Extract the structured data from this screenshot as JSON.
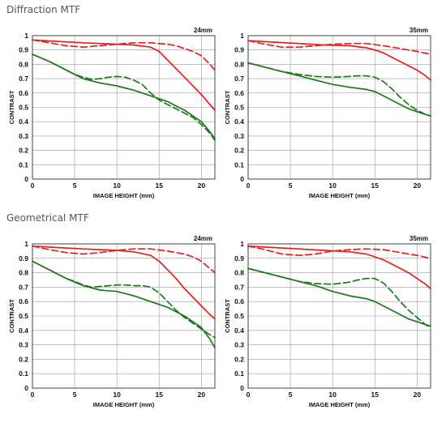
{
  "sections": [
    {
      "title": "Diffraction MTF"
    },
    {
      "title": "Geometrical MTF"
    }
  ],
  "colors": {
    "red": "#e41f1f",
    "green": "#1a7a1a",
    "grid": "#9a9a9a",
    "frame": "#333333"
  },
  "chart_data": [
    {
      "type": "line",
      "section": "Diffraction MTF",
      "focal": "24mm",
      "xlabel": "IMAGE HEIGHT (mm)",
      "ylabel": "CONTRAST",
      "xlim": [
        0,
        21.6
      ],
      "ylim": [
        0,
        1
      ],
      "xticks": [
        0,
        5,
        10,
        15,
        20
      ],
      "yticks": [
        0,
        0.1,
        0.2,
        0.3,
        0.4,
        0.5,
        0.6,
        0.7,
        0.8,
        0.9,
        1
      ],
      "series": [
        {
          "color": "red",
          "dash": false,
          "x": [
            0,
            3,
            6,
            8,
            10,
            12,
            14,
            15,
            16,
            17,
            18,
            19,
            20,
            21,
            21.6
          ],
          "y": [
            0.97,
            0.96,
            0.95,
            0.945,
            0.94,
            0.935,
            0.92,
            0.89,
            0.83,
            0.77,
            0.71,
            0.65,
            0.59,
            0.52,
            0.48
          ]
        },
        {
          "color": "red",
          "dash": true,
          "x": [
            0,
            2,
            4,
            6,
            8,
            10,
            12,
            14,
            16,
            17,
            18,
            19,
            20,
            21,
            21.6
          ],
          "y": [
            0.97,
            0.95,
            0.93,
            0.92,
            0.93,
            0.94,
            0.95,
            0.95,
            0.94,
            0.93,
            0.91,
            0.89,
            0.86,
            0.8,
            0.76
          ]
        },
        {
          "color": "green",
          "dash": false,
          "x": [
            0,
            2,
            4,
            6,
            8,
            10,
            12,
            14,
            16,
            17,
            18,
            19,
            20,
            21,
            21.6
          ],
          "y": [
            0.87,
            0.82,
            0.76,
            0.7,
            0.67,
            0.65,
            0.62,
            0.58,
            0.54,
            0.51,
            0.48,
            0.44,
            0.4,
            0.33,
            0.28
          ]
        },
        {
          "color": "green",
          "dash": true,
          "x": [
            0,
            2,
            4,
            5,
            6,
            7,
            8,
            9,
            10,
            11,
            12,
            13,
            14,
            15,
            16,
            17,
            18,
            19,
            20,
            21,
            21.6
          ],
          "y": [
            0.87,
            0.82,
            0.76,
            0.73,
            0.71,
            0.695,
            0.7,
            0.71,
            0.715,
            0.71,
            0.69,
            0.66,
            0.6,
            0.55,
            0.52,
            0.49,
            0.46,
            0.43,
            0.38,
            0.32,
            0.27
          ]
        }
      ]
    },
    {
      "type": "line",
      "section": "Diffraction MTF",
      "focal": "35mm",
      "xlabel": "IMAGE HEIGHT (mm)",
      "ylabel": "CONTRAST",
      "xlim": [
        0,
        21.6
      ],
      "ylim": [
        0,
        1
      ],
      "xticks": [
        0,
        5,
        10,
        15,
        20
      ],
      "yticks": [
        0,
        0.1,
        0.2,
        0.3,
        0.4,
        0.5,
        0.6,
        0.7,
        0.8,
        0.9,
        1
      ],
      "series": [
        {
          "color": "red",
          "dash": false,
          "x": [
            0,
            3,
            6,
            9,
            12,
            14,
            15,
            16,
            17,
            18,
            19,
            20,
            21,
            21.6
          ],
          "y": [
            0.965,
            0.955,
            0.945,
            0.935,
            0.93,
            0.915,
            0.9,
            0.88,
            0.85,
            0.82,
            0.79,
            0.76,
            0.72,
            0.69
          ]
        },
        {
          "color": "red",
          "dash": true,
          "x": [
            0,
            2,
            4,
            6,
            8,
            10,
            12,
            14,
            16,
            18,
            20,
            21.6
          ],
          "y": [
            0.965,
            0.94,
            0.92,
            0.92,
            0.93,
            0.94,
            0.945,
            0.945,
            0.93,
            0.91,
            0.89,
            0.87
          ]
        },
        {
          "color": "green",
          "dash": false,
          "x": [
            0,
            2,
            4,
            6,
            8,
            10,
            12,
            14,
            15,
            16,
            17,
            18,
            19,
            20,
            21,
            21.6
          ],
          "y": [
            0.81,
            0.78,
            0.75,
            0.72,
            0.69,
            0.66,
            0.64,
            0.625,
            0.61,
            0.58,
            0.55,
            0.52,
            0.49,
            0.47,
            0.45,
            0.44
          ]
        },
        {
          "color": "green",
          "dash": true,
          "x": [
            0,
            2,
            4,
            6,
            8,
            10,
            12,
            13,
            14,
            15,
            16,
            17,
            18,
            19,
            20,
            21,
            21.6
          ],
          "y": [
            0.81,
            0.78,
            0.75,
            0.73,
            0.715,
            0.71,
            0.715,
            0.72,
            0.72,
            0.71,
            0.68,
            0.63,
            0.57,
            0.52,
            0.48,
            0.45,
            0.44
          ]
        }
      ]
    },
    {
      "type": "line",
      "section": "Geometrical MTF",
      "focal": "24mm",
      "xlabel": "IMAGE HEIGHT (mm)",
      "ylabel": "CONTRAST",
      "xlim": [
        0,
        21.6
      ],
      "ylim": [
        0,
        1
      ],
      "xticks": [
        0,
        5,
        10,
        15,
        20
      ],
      "yticks": [
        0,
        0.1,
        0.2,
        0.3,
        0.4,
        0.5,
        0.6,
        0.7,
        0.8,
        0.9,
        1
      ],
      "series": [
        {
          "color": "red",
          "dash": false,
          "x": [
            0,
            3,
            6,
            8,
            10,
            12,
            14,
            15,
            16,
            17,
            18,
            19,
            20,
            21,
            21.6
          ],
          "y": [
            0.985,
            0.975,
            0.965,
            0.96,
            0.955,
            0.945,
            0.92,
            0.88,
            0.82,
            0.76,
            0.69,
            0.63,
            0.57,
            0.51,
            0.48
          ]
        },
        {
          "color": "red",
          "dash": true,
          "x": [
            0,
            2,
            4,
            6,
            8,
            10,
            12,
            14,
            16,
            17,
            18,
            19,
            20,
            21,
            21.6
          ],
          "y": [
            0.985,
            0.96,
            0.94,
            0.93,
            0.94,
            0.955,
            0.965,
            0.965,
            0.95,
            0.94,
            0.93,
            0.91,
            0.88,
            0.83,
            0.8
          ]
        },
        {
          "color": "green",
          "dash": false,
          "x": [
            0,
            2,
            4,
            6,
            8,
            10,
            12,
            14,
            16,
            17,
            18,
            19,
            20,
            21,
            21.6
          ],
          "y": [
            0.88,
            0.82,
            0.76,
            0.71,
            0.68,
            0.67,
            0.64,
            0.6,
            0.56,
            0.53,
            0.5,
            0.46,
            0.42,
            0.34,
            0.28
          ]
        },
        {
          "color": "green",
          "dash": true,
          "x": [
            0,
            2,
            4,
            5,
            6,
            7,
            8,
            9,
            10,
            11,
            12,
            13,
            14,
            15,
            16,
            17,
            18,
            19,
            20,
            21,
            21.6
          ],
          "y": [
            0.88,
            0.82,
            0.76,
            0.74,
            0.715,
            0.7,
            0.705,
            0.71,
            0.715,
            0.715,
            0.71,
            0.71,
            0.7,
            0.66,
            0.6,
            0.54,
            0.49,
            0.45,
            0.41,
            0.37,
            0.35
          ]
        }
      ]
    },
    {
      "type": "line",
      "section": "Geometrical MTF",
      "focal": "35mm",
      "xlabel": "IMAGE HEIGHT (mm)",
      "ylabel": "CONTRAST",
      "xlim": [
        0,
        21.6
      ],
      "ylim": [
        0,
        1
      ],
      "xticks": [
        0,
        5,
        10,
        15,
        20
      ],
      "yticks": [
        0,
        0.1,
        0.2,
        0.3,
        0.4,
        0.5,
        0.6,
        0.7,
        0.8,
        0.9,
        1
      ],
      "series": [
        {
          "color": "red",
          "dash": false,
          "x": [
            0,
            3,
            6,
            9,
            12,
            14,
            15,
            16,
            17,
            18,
            19,
            20,
            21,
            21.6
          ],
          "y": [
            0.985,
            0.975,
            0.965,
            0.955,
            0.945,
            0.93,
            0.91,
            0.89,
            0.86,
            0.83,
            0.8,
            0.76,
            0.72,
            0.69
          ]
        },
        {
          "color": "red",
          "dash": true,
          "x": [
            0,
            2,
            4,
            6,
            8,
            10,
            12,
            14,
            16,
            18,
            20,
            21.6
          ],
          "y": [
            0.985,
            0.96,
            0.93,
            0.92,
            0.93,
            0.95,
            0.96,
            0.965,
            0.96,
            0.94,
            0.92,
            0.9
          ]
        },
        {
          "color": "green",
          "dash": false,
          "x": [
            0,
            2,
            4,
            6,
            8,
            10,
            12,
            14,
            15,
            16,
            17,
            18,
            19,
            20,
            21,
            21.6
          ],
          "y": [
            0.83,
            0.8,
            0.77,
            0.74,
            0.71,
            0.67,
            0.64,
            0.62,
            0.6,
            0.57,
            0.54,
            0.51,
            0.48,
            0.46,
            0.44,
            0.43
          ]
        },
        {
          "color": "green",
          "dash": true,
          "x": [
            0,
            2,
            4,
            6,
            8,
            10,
            12,
            13,
            14,
            15,
            16,
            17,
            18,
            19,
            20,
            21,
            21.6
          ],
          "y": [
            0.83,
            0.8,
            0.77,
            0.74,
            0.725,
            0.72,
            0.735,
            0.75,
            0.76,
            0.76,
            0.73,
            0.67,
            0.6,
            0.54,
            0.49,
            0.44,
            0.42
          ]
        }
      ]
    }
  ]
}
